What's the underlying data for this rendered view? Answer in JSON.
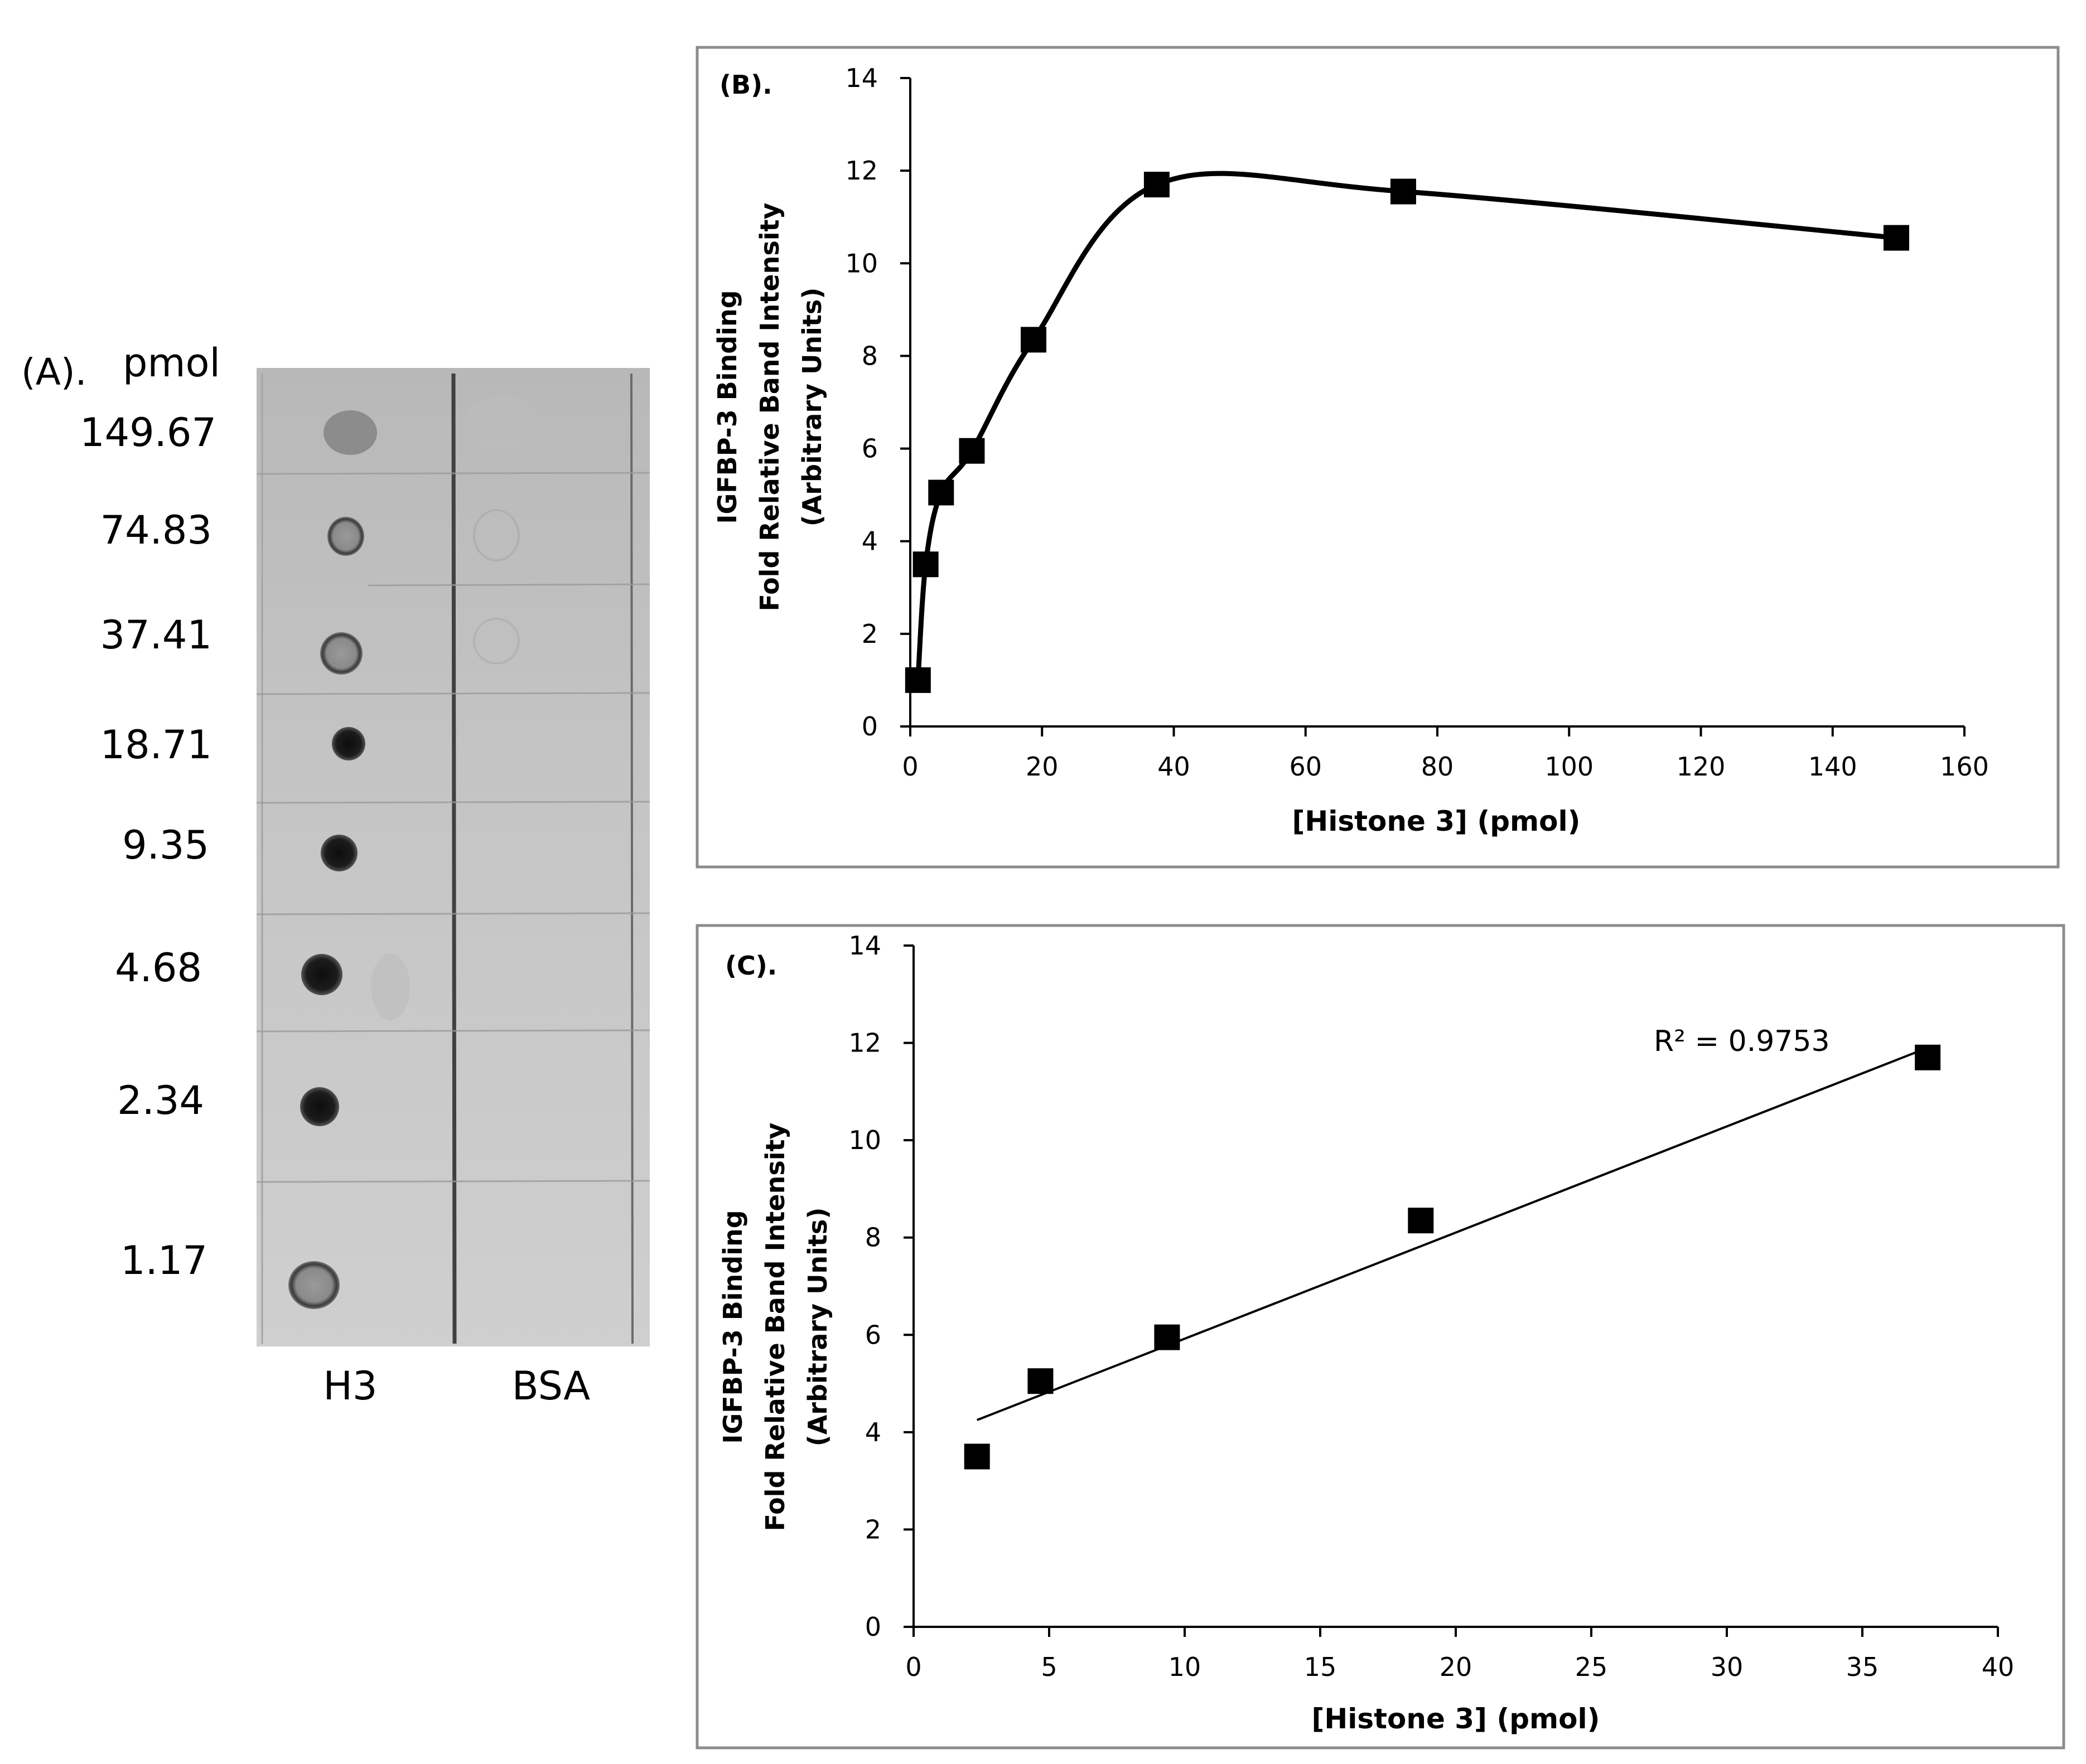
{
  "panel_a": {
    "label": "(A).",
    "unit_label": "pmol",
    "row_labels": [
      "149.67",
      "74.83",
      "37.41",
      "18.71",
      "9.35",
      "4.68",
      "2.34",
      "1.17"
    ],
    "lane_labels": [
      "H3",
      "BSA"
    ]
  },
  "chart_data": [
    {
      "type": "line",
      "panel_label": "(B).",
      "smooth": true,
      "x": [
        1.17,
        2.34,
        4.68,
        9.35,
        18.71,
        37.41,
        74.83,
        149.67
      ],
      "series": [
        {
          "name": "IGFBP-3 Binding",
          "values": [
            1.0,
            3.5,
            5.05,
            5.95,
            8.35,
            11.7,
            11.55,
            10.55
          ]
        }
      ],
      "xlabel": "[Histone 3] (pmol)",
      "ylabel_lines": [
        "IGFBP-3 Binding",
        "Fold Relative Band Intensity",
        "(Arbitrary Units)"
      ],
      "xlim": [
        0,
        160
      ],
      "ylim": [
        0,
        14
      ],
      "xticks": [
        0,
        20,
        40,
        60,
        80,
        100,
        120,
        140,
        160
      ],
      "yticks": [
        0,
        2,
        4,
        6,
        8,
        10,
        12,
        14
      ],
      "grid": false
    },
    {
      "type": "scatter",
      "panel_label": "(C).",
      "x": [
        2.34,
        4.68,
        9.35,
        18.71,
        37.41
      ],
      "series": [
        {
          "name": "IGFBP-3 Binding",
          "values": [
            3.5,
            5.05,
            5.95,
            8.35,
            11.7
          ]
        }
      ],
      "trendline": {
        "type": "linear",
        "x_start": 2.34,
        "y_start": 4.25,
        "x_end": 37.41,
        "y_end": 11.9,
        "label": "R² = 0.9753"
      },
      "xlabel": "[Histone 3] (pmol)",
      "ylabel_lines": [
        "IGFBP-3 Binding",
        "Fold Relative Band Intensity",
        "(Arbitrary Units)"
      ],
      "xlim": [
        0,
        40
      ],
      "ylim": [
        0,
        14
      ],
      "xticks": [
        0,
        5,
        10,
        15,
        20,
        25,
        30,
        35,
        40
      ],
      "yticks": [
        0,
        2,
        4,
        6,
        8,
        10,
        12,
        14
      ],
      "grid": false
    }
  ]
}
